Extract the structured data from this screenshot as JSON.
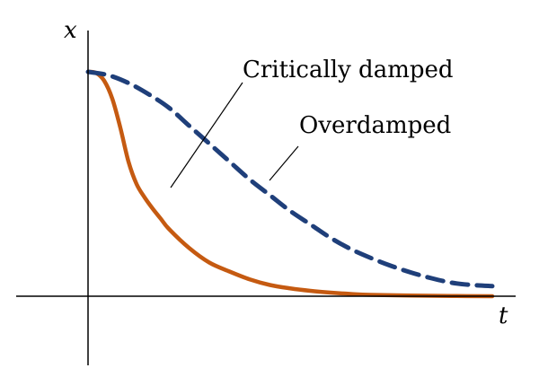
{
  "chart_data": {
    "type": "line",
    "title": "",
    "xlabel": "t",
    "ylabel": "x",
    "xlim": [
      0,
      1
    ],
    "ylim": [
      0,
      1
    ],
    "grid": false,
    "legend": "none",
    "series": [
      {
        "key": "critically_damped",
        "color": "#c55a11",
        "dash": "solid",
        "x": [
          0,
          0.02,
          0.04,
          0.06,
          0.08,
          0.1,
          0.12,
          0.14,
          0.16,
          0.18,
          0.2,
          0.25,
          0.3,
          0.35,
          0.4,
          0.45,
          0.5,
          0.55,
          0.6,
          0.65,
          0.7,
          0.8,
          0.9,
          1.0
        ],
        "values": [
          1.0,
          0.995,
          0.96,
          0.88,
          0.75,
          0.6,
          0.5,
          0.44,
          0.39,
          0.345,
          0.3,
          0.215,
          0.15,
          0.11,
          0.075,
          0.05,
          0.035,
          0.024,
          0.016,
          0.01,
          0.006,
          0.003,
          0.001,
          0.0
        ]
      },
      {
        "key": "overdamped",
        "color": "#1f3f7a",
        "dash": "dashed",
        "x": [
          0,
          0.05,
          0.1,
          0.15,
          0.2,
          0.25,
          0.3,
          0.35,
          0.4,
          0.45,
          0.5,
          0.55,
          0.6,
          0.65,
          0.7,
          0.75,
          0.8,
          0.85,
          0.9,
          0.95,
          1.0
        ],
        "values": [
          1.0,
          0.985,
          0.95,
          0.9,
          0.84,
          0.76,
          0.68,
          0.6,
          0.52,
          0.45,
          0.38,
          0.32,
          0.26,
          0.21,
          0.17,
          0.135,
          0.105,
          0.08,
          0.06,
          0.05,
          0.045
        ]
      }
    ],
    "annotations": [
      {
        "text": "Critically damped",
        "series": "critically_damped",
        "point_x": 0.2
      },
      {
        "text": "Overdamped",
        "series": "overdamped",
        "point_x": 0.45
      }
    ]
  }
}
